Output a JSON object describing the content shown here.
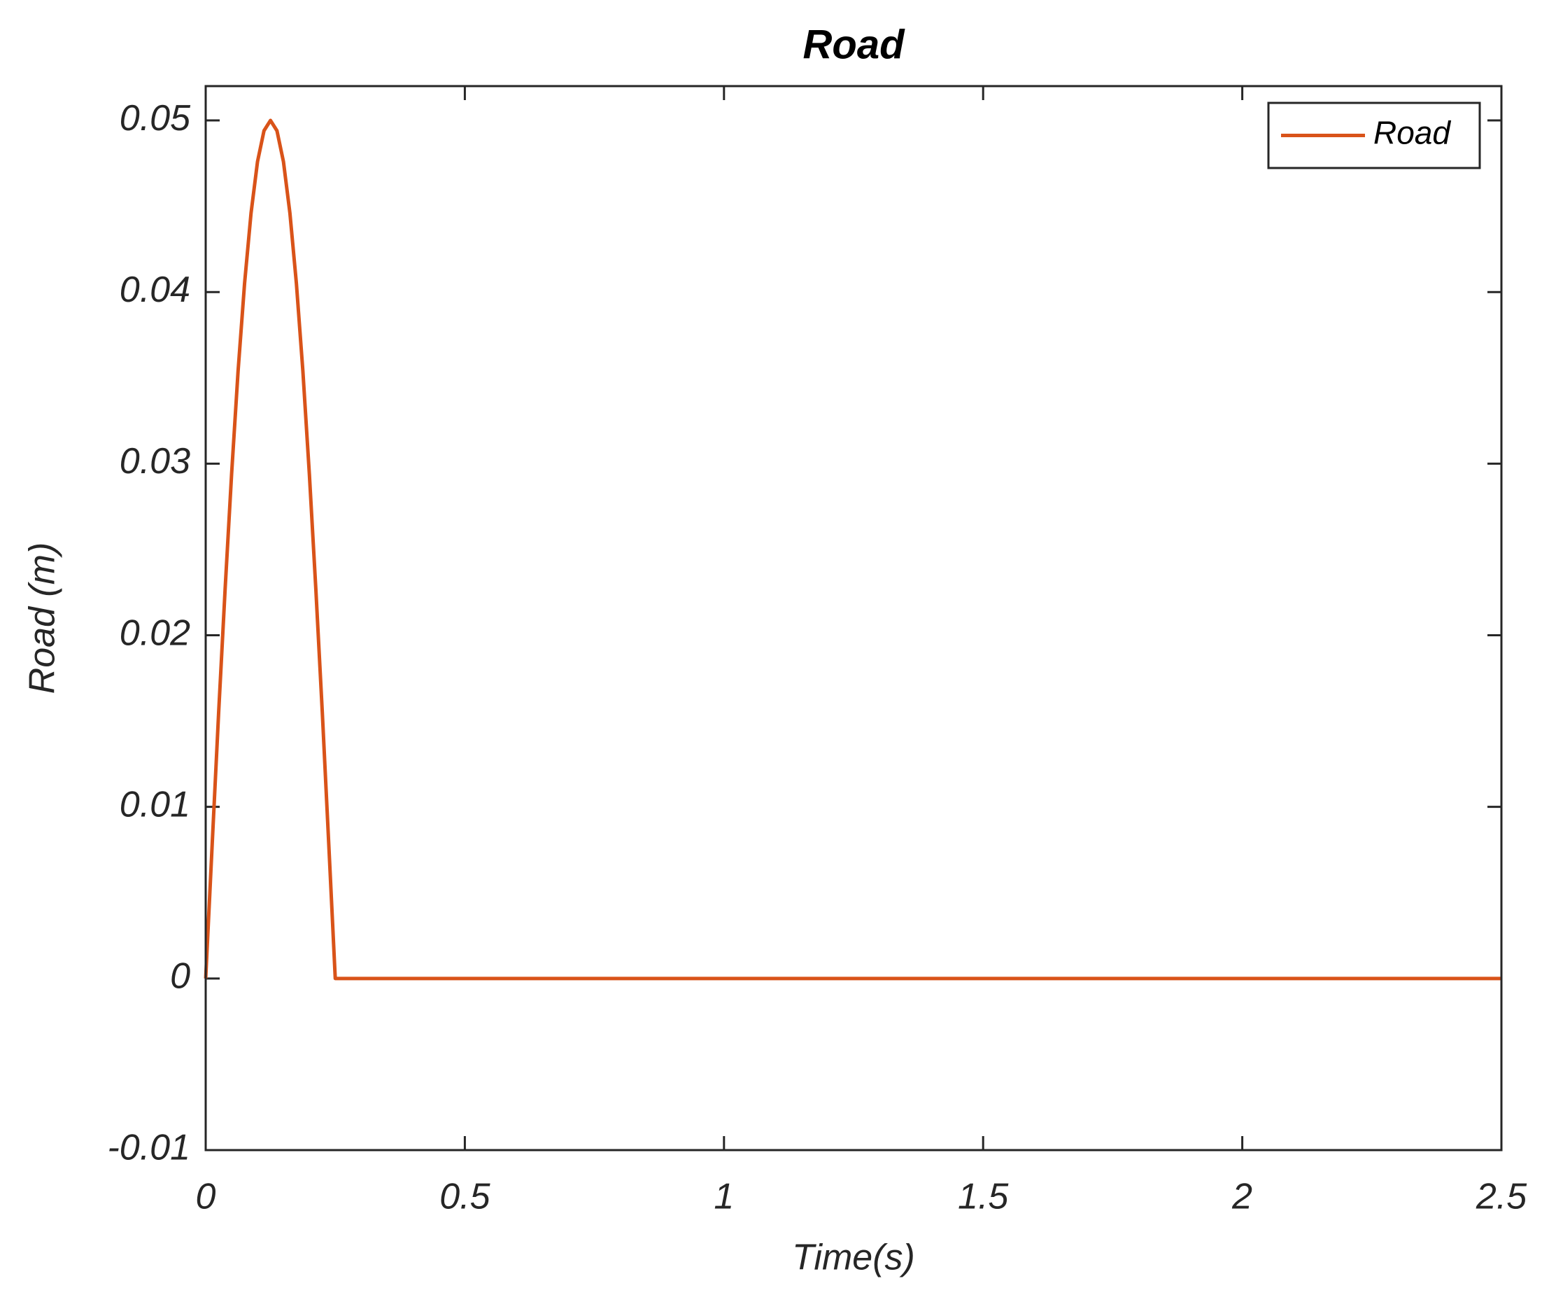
{
  "chart_data": {
    "type": "line",
    "title": "Road",
    "xlabel": "Time(s)",
    "ylabel": "Road (m)",
    "x": [
      0,
      0.0125,
      0.025,
      0.0375,
      0.05,
      0.0625,
      0.075,
      0.0875,
      0.1,
      0.1125,
      0.125,
      0.1375,
      0.15,
      0.1625,
      0.175,
      0.1875,
      0.2,
      0.2125,
      0.225,
      0.2375,
      0.25,
      2.5
    ],
    "series": [
      {
        "name": "Road",
        "color": "#d95319",
        "values": [
          0,
          0.0078,
          0.0155,
          0.0227,
          0.0294,
          0.0354,
          0.0405,
          0.0446,
          0.0476,
          0.0494,
          0.05,
          0.0494,
          0.0476,
          0.0446,
          0.0405,
          0.0354,
          0.0294,
          0.0227,
          0.0155,
          0.0078,
          0,
          0
        ]
      }
    ],
    "xlim": [
      0,
      2.5
    ],
    "xticks": [
      0,
      0.5,
      1,
      1.5,
      2,
      2.5
    ],
    "ylim": [
      -0.01,
      0.052
    ],
    "yticks": [
      -0.01,
      0,
      0.01,
      0.02,
      0.03,
      0.04,
      0.05
    ],
    "grid": false,
    "legend": "upper right"
  }
}
